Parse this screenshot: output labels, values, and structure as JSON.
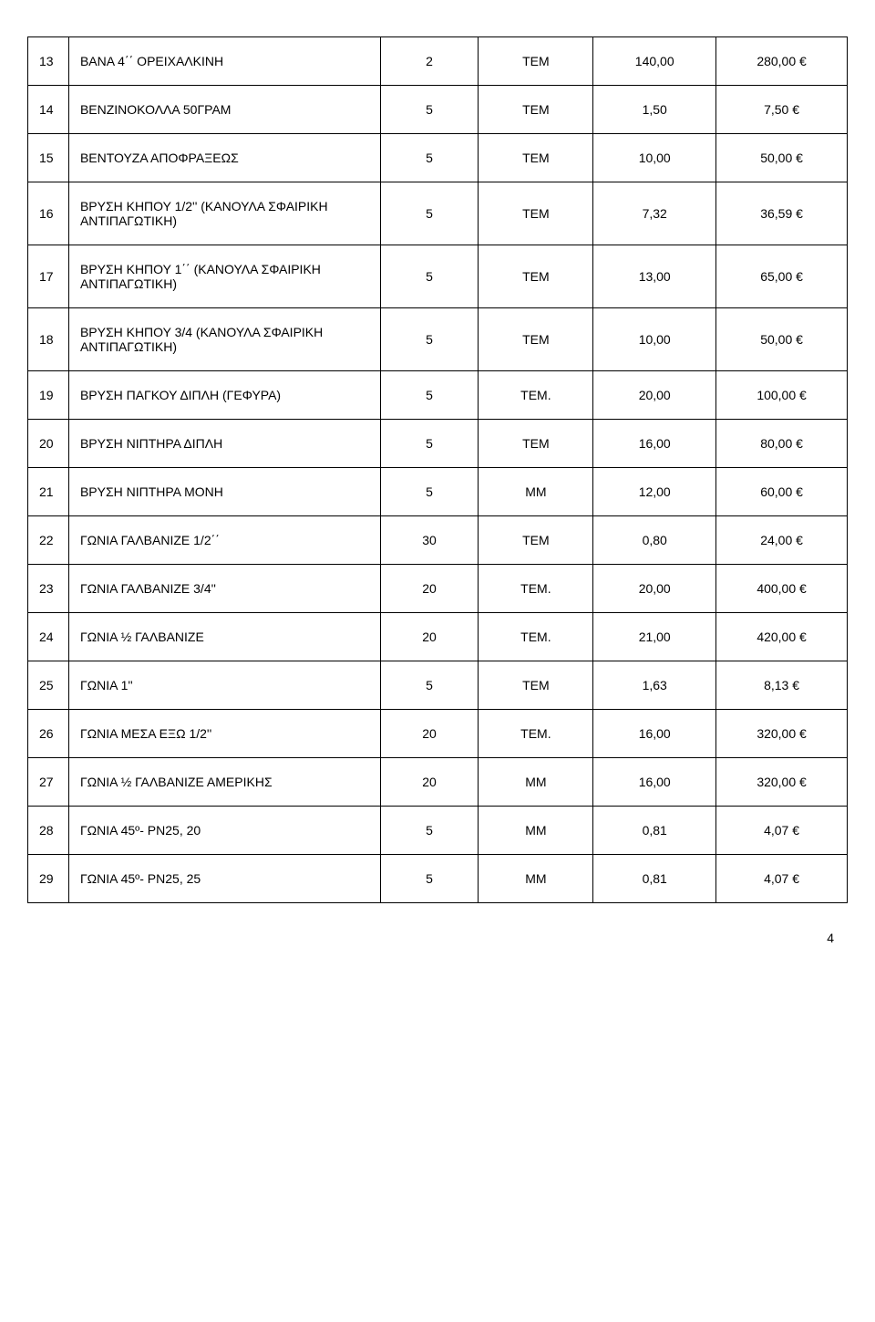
{
  "table": {
    "columns": [
      "num",
      "desc",
      "qty",
      "unit",
      "price",
      "total"
    ],
    "col_classes": [
      "col-num",
      "col-desc",
      "col-qty",
      "col-unit",
      "col-price",
      "col-total"
    ],
    "rows": [
      [
        "13",
        "ΒΑΝΑ 4΄΄ ΟΡΕΙΧΑΛΚΙΝΗ",
        "2",
        "ΤΕΜ",
        "140,00",
        "280,00 €"
      ],
      [
        "14",
        "ΒΕΝΖΙΝΟΚΟΛΛΑ 50ΓΡΑΜ",
        "5",
        "ΤΕΜ",
        "1,50",
        "7,50 €"
      ],
      [
        "15",
        "ΒΕΝΤΟΥΖΑ ΑΠΟΦΡΑΞΕΩΣ",
        "5",
        "ΤΕΜ",
        "10,00",
        "50,00 €"
      ],
      [
        "16",
        "ΒΡΥΣΗ ΚΗΠΟΥ 1/2'' (ΚΑΝΟΥΛΑ ΣΦΑΙΡΙΚΗ ΑΝΤΙΠΑΓΩΤΙΚΗ)",
        "5",
        "ΤΕΜ",
        "7,32",
        "36,59 €"
      ],
      [
        "17",
        "ΒΡΥΣΗ ΚΗΠΟΥ 1΄΄ (ΚΑΝΟΥΛΑ ΣΦΑΙΡΙΚΗ ΑΝΤΙΠΑΓΩΤΙΚΗ)",
        "5",
        "ΤΕΜ",
        "13,00",
        "65,00 €"
      ],
      [
        "18",
        "ΒΡΥΣΗ ΚΗΠΟΥ 3/4 (ΚΑΝΟΥΛΑ ΣΦΑΙΡΙΚΗ ΑΝΤΙΠΑΓΩΤΙΚΗ)",
        "5",
        "ΤΕΜ",
        "10,00",
        "50,00 €"
      ],
      [
        "19",
        "ΒΡΥΣΗ ΠΑΓΚΟΥ ΔΙΠΛΗ (ΓΕΦΥΡΑ)",
        "5",
        "ΤΕΜ.",
        "20,00",
        "100,00 €"
      ],
      [
        "20",
        "ΒΡΥΣΗ ΝΙΠΤΗΡΑ ΔΙΠΛΗ",
        "5",
        "ΤΕΜ",
        "16,00",
        "80,00 €"
      ],
      [
        "21",
        "ΒΡΥΣΗ ΝΙΠΤΗΡΑ ΜΟΝΗ",
        "5",
        "ΜΜ",
        "12,00",
        "60,00 €"
      ],
      [
        "22",
        "ΓΩΝΙΑ ΓΑΛΒΑΝΙΖΕ 1/2΄΄",
        "30",
        "ΤΕΜ",
        "0,80",
        "24,00 €"
      ],
      [
        "23",
        "ΓΩΝΙΑ ΓΑΛΒΑΝΙΖΕ 3/4''",
        "20",
        "ΤΕΜ.",
        "20,00",
        "400,00 €"
      ],
      [
        "24",
        "ΓΩΝΙΑ ½ ΓΑΛΒΑΝΙΖΕ",
        "20",
        "ΤΕΜ.",
        "21,00",
        "420,00 €"
      ],
      [
        "25",
        "ΓΩΝΙΑ 1''",
        "5",
        "ΤΕΜ",
        "1,63",
        "8,13 €"
      ],
      [
        "26",
        "ΓΩΝΙΑ ΜΕΣΑ ΕΞΩ 1/2''",
        "20",
        "ΤΕΜ.",
        "16,00",
        "320,00 €"
      ],
      [
        "27",
        "ΓΩΝΙΑ ½ ΓΑΛΒΑΝΙΖΕ ΑΜΕΡΙΚΗΣ",
        "20",
        "ΜΜ",
        "16,00",
        "320,00 €"
      ],
      [
        "28",
        "ΓΩΝΙΑ 45º- PN25, 20",
        "5",
        "ΜΜ",
        "0,81",
        "4,07 €"
      ],
      [
        "29",
        "ΓΩΝΙΑ 45º- PN25, 25",
        "5",
        "ΜΜ",
        "0,81",
        "4,07 €"
      ]
    ]
  },
  "page_number": "4"
}
